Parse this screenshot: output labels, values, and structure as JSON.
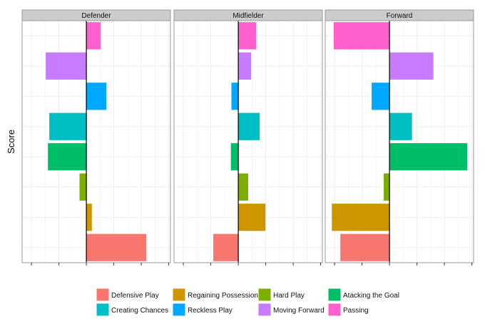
{
  "chart_data": {
    "type": "bar",
    "orientation": "horizontal",
    "ylabel": "Score",
    "xlabel": "",
    "xlim": [
      -2.34,
      3.06
    ],
    "grid": true,
    "legend_position": "bottom",
    "facets": [
      "Defender",
      "Midfielder",
      "Forward"
    ],
    "categories": [
      "Passing",
      "Moving Forward",
      "Reckless Play",
      "Creating Chances",
      "Atacking the Goal",
      "Hard Play",
      "Regaining Possession",
      "Defensive Play"
    ],
    "colors": {
      "Defensive Play": "#F8766D",
      "Regaining Possession": "#CD9600",
      "Hard Play": "#7CAE00",
      "Atacking the Goal": "#00BE67",
      "Creating Chances": "#00BFC4",
      "Reckless Play": "#00A9FF",
      "Moving Forward": "#C77CFF",
      "Passing": "#FF61CC"
    },
    "series": [
      {
        "facet": "Defender",
        "values": [
          0.52,
          -1.48,
          0.73,
          -1.35,
          -1.4,
          -0.25,
          0.2,
          2.18
        ]
      },
      {
        "facet": "Midfielder",
        "values": [
          0.65,
          0.47,
          -0.25,
          0.78,
          -0.27,
          0.36,
          0.99,
          -0.91
        ]
      },
      {
        "facet": "Forward",
        "values": [
          -2.03,
          1.6,
          -0.65,
          0.82,
          2.83,
          -0.21,
          -2.1,
          -1.79
        ]
      }
    ],
    "legend": [
      "Defensive Play",
      "Regaining Possession",
      "Hard Play",
      "Atacking the Goal",
      "Creating Chances",
      "Reckless Play",
      "Moving Forward",
      "Passing"
    ]
  }
}
